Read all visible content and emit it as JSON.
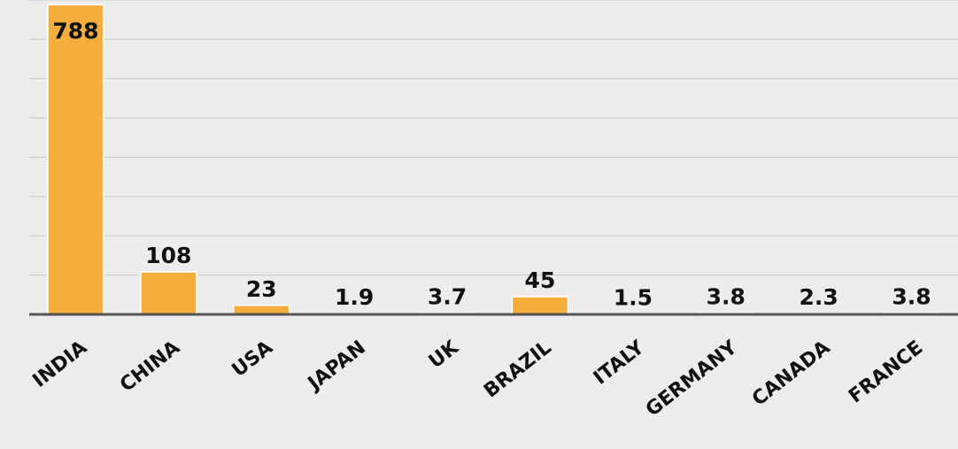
{
  "chart_data": {
    "type": "bar",
    "categories": [
      "INDIA",
      "CHINA",
      "USA",
      "JAPAN",
      "UK",
      "BRAZIL",
      "ITALY",
      "GERMANY",
      "CANADA",
      "FRANCE"
    ],
    "values": [
      788,
      108,
      23,
      1.9,
      3.7,
      45,
      1.5,
      3.8,
      2.3,
      3.8
    ],
    "data_labels": [
      "788",
      "108",
      "23",
      "1.9",
      "3.7",
      "45",
      "1.5",
      "3.8",
      "2.3",
      "3.8"
    ],
    "ylim": [
      0,
      800
    ],
    "grid": true,
    "legend": "none",
    "colors": {
      "bar": "#f5ae3d",
      "background": "#ececec",
      "gridline": "#c8c8c8",
      "baseline": "#555555"
    }
  }
}
